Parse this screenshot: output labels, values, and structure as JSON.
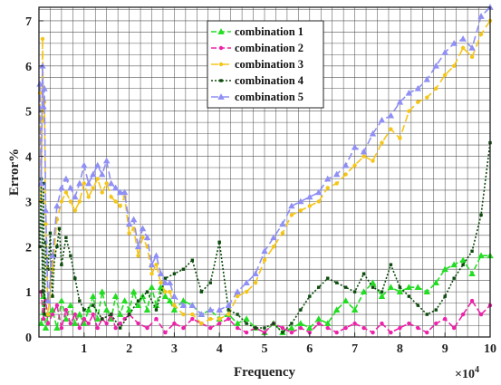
{
  "chart_data": {
    "type": "line",
    "title": "",
    "xlabel": "Frequency",
    "ylabel": "Error%",
    "x_multiplier_label": "×10",
    "x_multiplier_exp": "4",
    "xlim": [
      0,
      10
    ],
    "ylim": [
      0,
      7.3
    ],
    "x_ticks": [
      1,
      2,
      3,
      4,
      5,
      6,
      7,
      8,
      9,
      10
    ],
    "x_tick_labels": [
      "1",
      "2",
      "3",
      "4",
      "5",
      "6",
      "7",
      "8",
      "9",
      "10"
    ],
    "y_ticks": [
      0,
      1,
      2,
      3,
      4,
      5,
      6,
      7
    ],
    "y_tick_labels": [
      "0",
      "1",
      "2",
      "3",
      "4",
      "5",
      "6",
      "7"
    ],
    "grid": true,
    "legend_position": "top-center",
    "series": [
      {
        "name": "combination 1",
        "color": "#22dd22",
        "dash": "6,3",
        "marker": "triangle",
        "x": [
          0.05,
          0.1,
          0.15,
          0.2,
          0.3,
          0.4,
          0.5,
          0.6,
          0.7,
          0.8,
          0.9,
          1.0,
          1.1,
          1.2,
          1.3,
          1.4,
          1.5,
          1.6,
          1.7,
          1.8,
          1.9,
          2.0,
          2.1,
          2.2,
          2.3,
          2.4,
          2.5,
          2.6,
          2.7,
          2.8,
          2.9,
          3.0,
          3.2,
          3.4,
          3.6,
          3.8,
          4.0,
          4.2,
          4.4,
          4.6,
          4.8,
          5.0,
          5.2,
          5.4,
          5.6,
          5.8,
          6.0,
          6.2,
          6.4,
          6.6,
          6.8,
          7.0,
          7.2,
          7.4,
          7.6,
          7.8,
          8.0,
          8.2,
          8.4,
          8.6,
          8.8,
          9.0,
          9.2,
          9.4,
          9.6,
          9.8,
          10.0
        ],
        "y": [
          0.3,
          0.9,
          0.2,
          0.5,
          0.6,
          0.2,
          0.8,
          0.4,
          0.7,
          0.3,
          0.5,
          0.3,
          0.6,
          0.9,
          0.4,
          1.0,
          0.6,
          0.4,
          0.9,
          0.5,
          0.8,
          0.6,
          1.0,
          0.7,
          0.9,
          0.6,
          1.1,
          0.7,
          1.1,
          0.9,
          0.8,
          0.6,
          0.8,
          0.7,
          0.5,
          0.6,
          0.4,
          0.5,
          0.3,
          0.4,
          0.2,
          0.1,
          0.3,
          0.1,
          0.2,
          0.3,
          0.2,
          0.4,
          0.3,
          0.6,
          0.8,
          0.6,
          1.0,
          1.2,
          0.9,
          1.1,
          1.0,
          1.1,
          1.1,
          1.0,
          1.2,
          1.5,
          1.6,
          1.7,
          1.4,
          1.8,
          1.8
        ]
      },
      {
        "name": "combination 2",
        "color": "#ee22aa",
        "dash": "6,3",
        "marker": "dot",
        "x": [
          0.05,
          0.1,
          0.15,
          0.2,
          0.3,
          0.4,
          0.5,
          0.6,
          0.7,
          0.8,
          0.9,
          1.0,
          1.1,
          1.2,
          1.3,
          1.4,
          1.5,
          1.6,
          1.7,
          1.8,
          1.9,
          2.0,
          2.2,
          2.4,
          2.6,
          2.8,
          3.0,
          3.2,
          3.4,
          3.6,
          3.8,
          4.0,
          4.2,
          4.4,
          4.6,
          4.8,
          5.0,
          5.2,
          5.4,
          5.6,
          5.8,
          6.0,
          6.2,
          6.4,
          6.6,
          6.8,
          7.0,
          7.2,
          7.4,
          7.6,
          7.8,
          8.0,
          8.2,
          8.4,
          8.6,
          8.8,
          9.0,
          9.2,
          9.4,
          9.6,
          9.8,
          10.0
        ],
        "y": [
          1.0,
          0.4,
          0.8,
          0.3,
          0.5,
          0.7,
          0.2,
          0.6,
          0.3,
          0.5,
          0.2,
          0.4,
          0.3,
          0.5,
          0.2,
          0.4,
          0.3,
          0.5,
          0.2,
          0.3,
          0.4,
          0.5,
          0.3,
          0.2,
          0.4,
          0.1,
          0.3,
          0.2,
          0.4,
          0.3,
          0.2,
          0.3,
          0.4,
          0.2,
          0.1,
          0.2,
          0.1,
          0.3,
          0.2,
          0.1,
          0.2,
          0.1,
          0.3,
          0.2,
          0.1,
          0.2,
          0.3,
          0.2,
          0.1,
          0.3,
          0.1,
          0.2,
          0.3,
          0.2,
          0.1,
          0.3,
          0.4,
          0.2,
          0.5,
          0.8,
          0.5,
          0.7
        ]
      },
      {
        "name": "combination 3",
        "color": "#f5c518",
        "dash": "8,4",
        "marker": "dot",
        "x": [
          0.02,
          0.05,
          0.08,
          0.1,
          0.12,
          0.15,
          0.2,
          0.3,
          0.4,
          0.5,
          0.6,
          0.7,
          0.8,
          0.9,
          1.0,
          1.1,
          1.2,
          1.3,
          1.4,
          1.5,
          1.6,
          1.7,
          1.8,
          1.9,
          2.0,
          2.1,
          2.2,
          2.3,
          2.4,
          2.5,
          2.6,
          2.7,
          2.8,
          2.9,
          3.0,
          3.2,
          3.4,
          3.6,
          3.8,
          4.0,
          4.2,
          4.4,
          4.6,
          4.8,
          5.0,
          5.2,
          5.4,
          5.6,
          5.8,
          6.0,
          6.2,
          6.4,
          6.6,
          6.8,
          7.0,
          7.2,
          7.4,
          7.6,
          7.8,
          8.0,
          8.2,
          8.4,
          8.6,
          8.8,
          9.0,
          9.2,
          9.4,
          9.6,
          9.8,
          10.0
        ],
        "y": [
          5.4,
          3.0,
          6.6,
          4.8,
          5.2,
          2.5,
          0.5,
          1.5,
          2.6,
          3.0,
          3.2,
          3.0,
          2.8,
          3.0,
          3.4,
          3.1,
          3.3,
          3.5,
          3.2,
          3.4,
          3.1,
          3.0,
          2.9,
          3.1,
          2.3,
          2.4,
          1.8,
          2.2,
          2.0,
          1.4,
          1.6,
          1.2,
          1.0,
          1.0,
          0.7,
          0.5,
          0.5,
          0.3,
          0.4,
          0.4,
          0.5,
          0.9,
          1.0,
          1.2,
          1.7,
          2.0,
          2.3,
          2.7,
          2.8,
          2.9,
          3.0,
          3.3,
          3.4,
          3.6,
          3.8,
          4.0,
          3.9,
          4.3,
          4.6,
          4.4,
          5.0,
          5.2,
          5.3,
          5.5,
          5.8,
          6.0,
          6.4,
          6.2,
          6.7,
          7.0
        ]
      },
      {
        "name": "combination 4",
        "color": "#0a4a0a",
        "dash": "2,2",
        "marker": "square",
        "x": [
          0.02,
          0.05,
          0.08,
          0.1,
          0.12,
          0.15,
          0.2,
          0.25,
          0.3,
          0.35,
          0.4,
          0.45,
          0.5,
          0.6,
          0.7,
          0.8,
          0.9,
          1.0,
          1.2,
          1.4,
          1.6,
          1.8,
          2.0,
          2.2,
          2.4,
          2.6,
          2.8,
          3.0,
          3.2,
          3.4,
          3.6,
          3.8,
          4.0,
          4.2,
          4.4,
          4.6,
          4.8,
          5.0,
          5.2,
          5.4,
          5.6,
          5.8,
          6.0,
          6.2,
          6.4,
          6.6,
          6.8,
          7.0,
          7.2,
          7.4,
          7.6,
          7.8,
          8.0,
          8.2,
          8.4,
          8.6,
          8.8,
          9.0,
          9.2,
          9.4,
          9.6,
          9.8,
          10.0
        ],
        "y": [
          2.0,
          3.5,
          1.0,
          3.4,
          0.5,
          2.1,
          1.5,
          2.3,
          0.9,
          1.8,
          2.0,
          2.4,
          1.6,
          2.2,
          1.8,
          1.3,
          0.8,
          0.6,
          0.7,
          0.4,
          0.5,
          0.2,
          0.5,
          0.8,
          1.0,
          0.6,
          1.3,
          1.4,
          1.5,
          1.7,
          1.0,
          1.2,
          2.1,
          0.6,
          0.5,
          0.3,
          0.2,
          0.2,
          0.3,
          0.1,
          0.3,
          0.6,
          0.9,
          1.1,
          1.3,
          1.2,
          1.1,
          1.0,
          1.4,
          1.1,
          1.0,
          1.6,
          1.1,
          0.9,
          0.7,
          0.5,
          0.6,
          0.9,
          1.3,
          1.6,
          1.9,
          2.7,
          4.3
        ]
      },
      {
        "name": "combination 5",
        "color": "#8f8ff5",
        "dash": "8,4",
        "marker": "triangle",
        "x": [
          0.02,
          0.05,
          0.08,
          0.1,
          0.12,
          0.15,
          0.2,
          0.3,
          0.4,
          0.5,
          0.6,
          0.7,
          0.8,
          0.9,
          1.0,
          1.1,
          1.2,
          1.3,
          1.4,
          1.5,
          1.6,
          1.7,
          1.8,
          1.9,
          2.0,
          2.1,
          2.2,
          2.3,
          2.4,
          2.5,
          2.6,
          2.7,
          2.8,
          2.9,
          3.0,
          3.2,
          3.4,
          3.6,
          3.8,
          4.0,
          4.2,
          4.4,
          4.6,
          4.8,
          5.0,
          5.2,
          5.4,
          5.6,
          5.8,
          6.0,
          6.2,
          6.4,
          6.6,
          6.8,
          7.0,
          7.2,
          7.4,
          7.6,
          7.8,
          8.0,
          8.2,
          8.4,
          8.6,
          8.8,
          9.0,
          9.2,
          9.4,
          9.6,
          9.8,
          10.0
        ],
        "y": [
          5.6,
          3.4,
          6.0,
          5.1,
          5.5,
          2.8,
          0.8,
          1.8,
          2.9,
          3.3,
          3.5,
          3.3,
          3.1,
          3.4,
          3.8,
          3.4,
          3.6,
          3.8,
          3.6,
          3.9,
          3.4,
          3.3,
          3.2,
          3.2,
          2.5,
          2.6,
          2.0,
          2.4,
          2.2,
          1.6,
          1.8,
          1.4,
          1.2,
          1.2,
          0.9,
          0.7,
          0.7,
          0.5,
          0.6,
          0.6,
          0.7,
          1.0,
          1.2,
          1.4,
          1.9,
          2.2,
          2.5,
          2.9,
          3.0,
          3.1,
          3.2,
          3.5,
          3.6,
          3.8,
          4.2,
          4.1,
          4.5,
          4.8,
          4.9,
          5.2,
          5.4,
          5.5,
          5.7,
          6.0,
          6.3,
          6.5,
          6.6,
          6.4,
          7.1,
          7.3
        ]
      }
    ]
  }
}
